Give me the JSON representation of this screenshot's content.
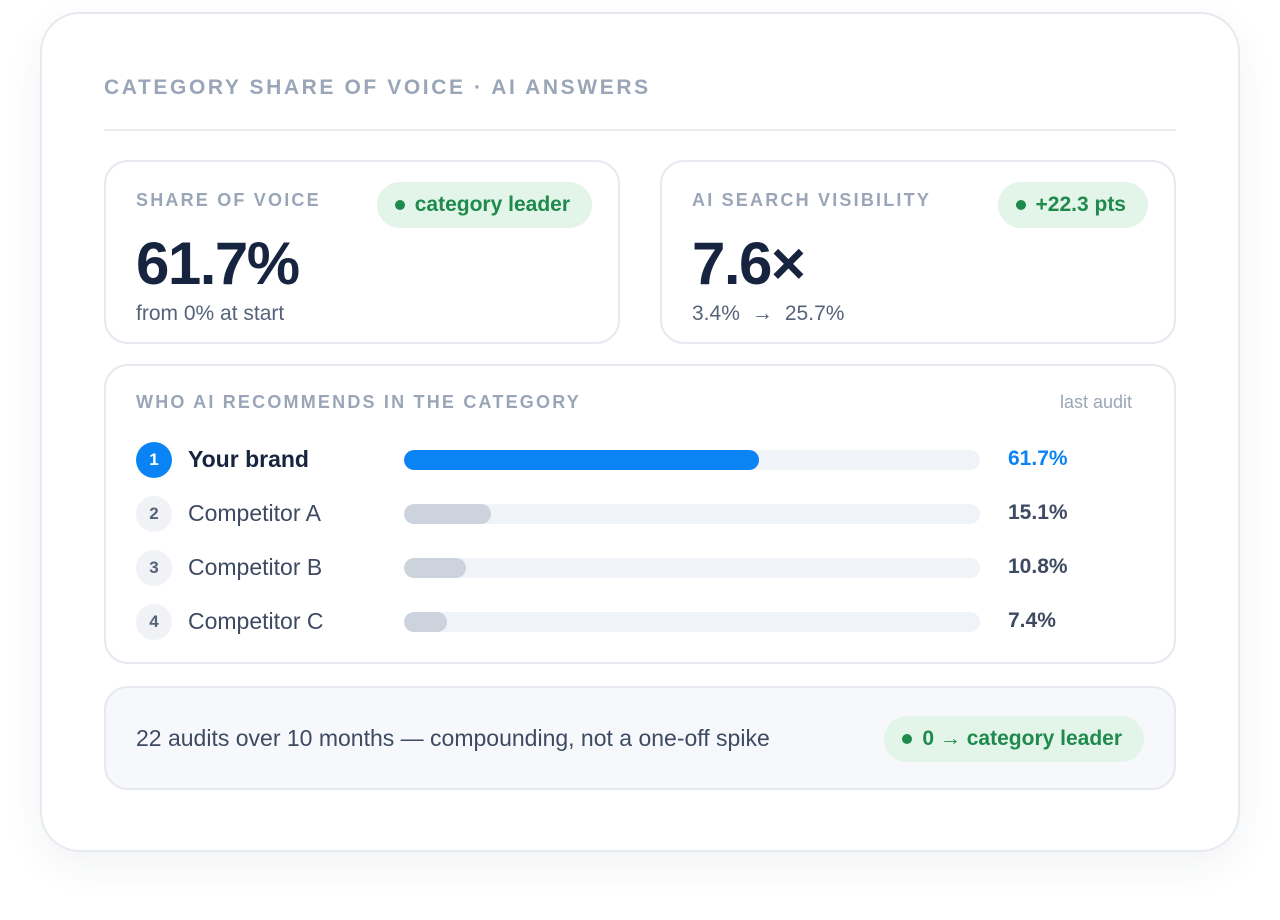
{
  "card": {
    "title": "CATEGORY SHARE OF VOICE · AI ANSWERS"
  },
  "share_of_voice": {
    "label": "SHARE OF VOICE",
    "badge": "category leader",
    "value": "61.7%",
    "subtext": "from 0% at start"
  },
  "ai_visibility": {
    "label": "AI SEARCH VISIBILITY",
    "badge": "+22.3 pts",
    "value": "7.6×",
    "from": "3.4%",
    "arrow": "→",
    "to": "25.7%"
  },
  "ranking": {
    "label": "WHO AI RECOMMENDS IN THE CATEGORY",
    "meta": "last audit",
    "rows": [
      {
        "rank": "1",
        "name": "Your brand",
        "pct": "61.7%",
        "share": 61.7
      },
      {
        "rank": "2",
        "name": "Competitor A",
        "pct": "15.1%",
        "share": 15.1
      },
      {
        "rank": "3",
        "name": "Competitor B",
        "pct": "10.8%",
        "share": 10.8
      },
      {
        "rank": "4",
        "name": "Competitor C",
        "pct": "7.4%",
        "share": 7.4
      }
    ]
  },
  "footer": {
    "text": "22 audits over 10 months — compounding, not a one-off spike",
    "badge": "0 → category leader"
  },
  "colors": {
    "accent": "#0a84f5",
    "positive": "#1e8a4c",
    "positive_bg": "#e3f4e9",
    "muted_bar": "#cdd3dc"
  }
}
